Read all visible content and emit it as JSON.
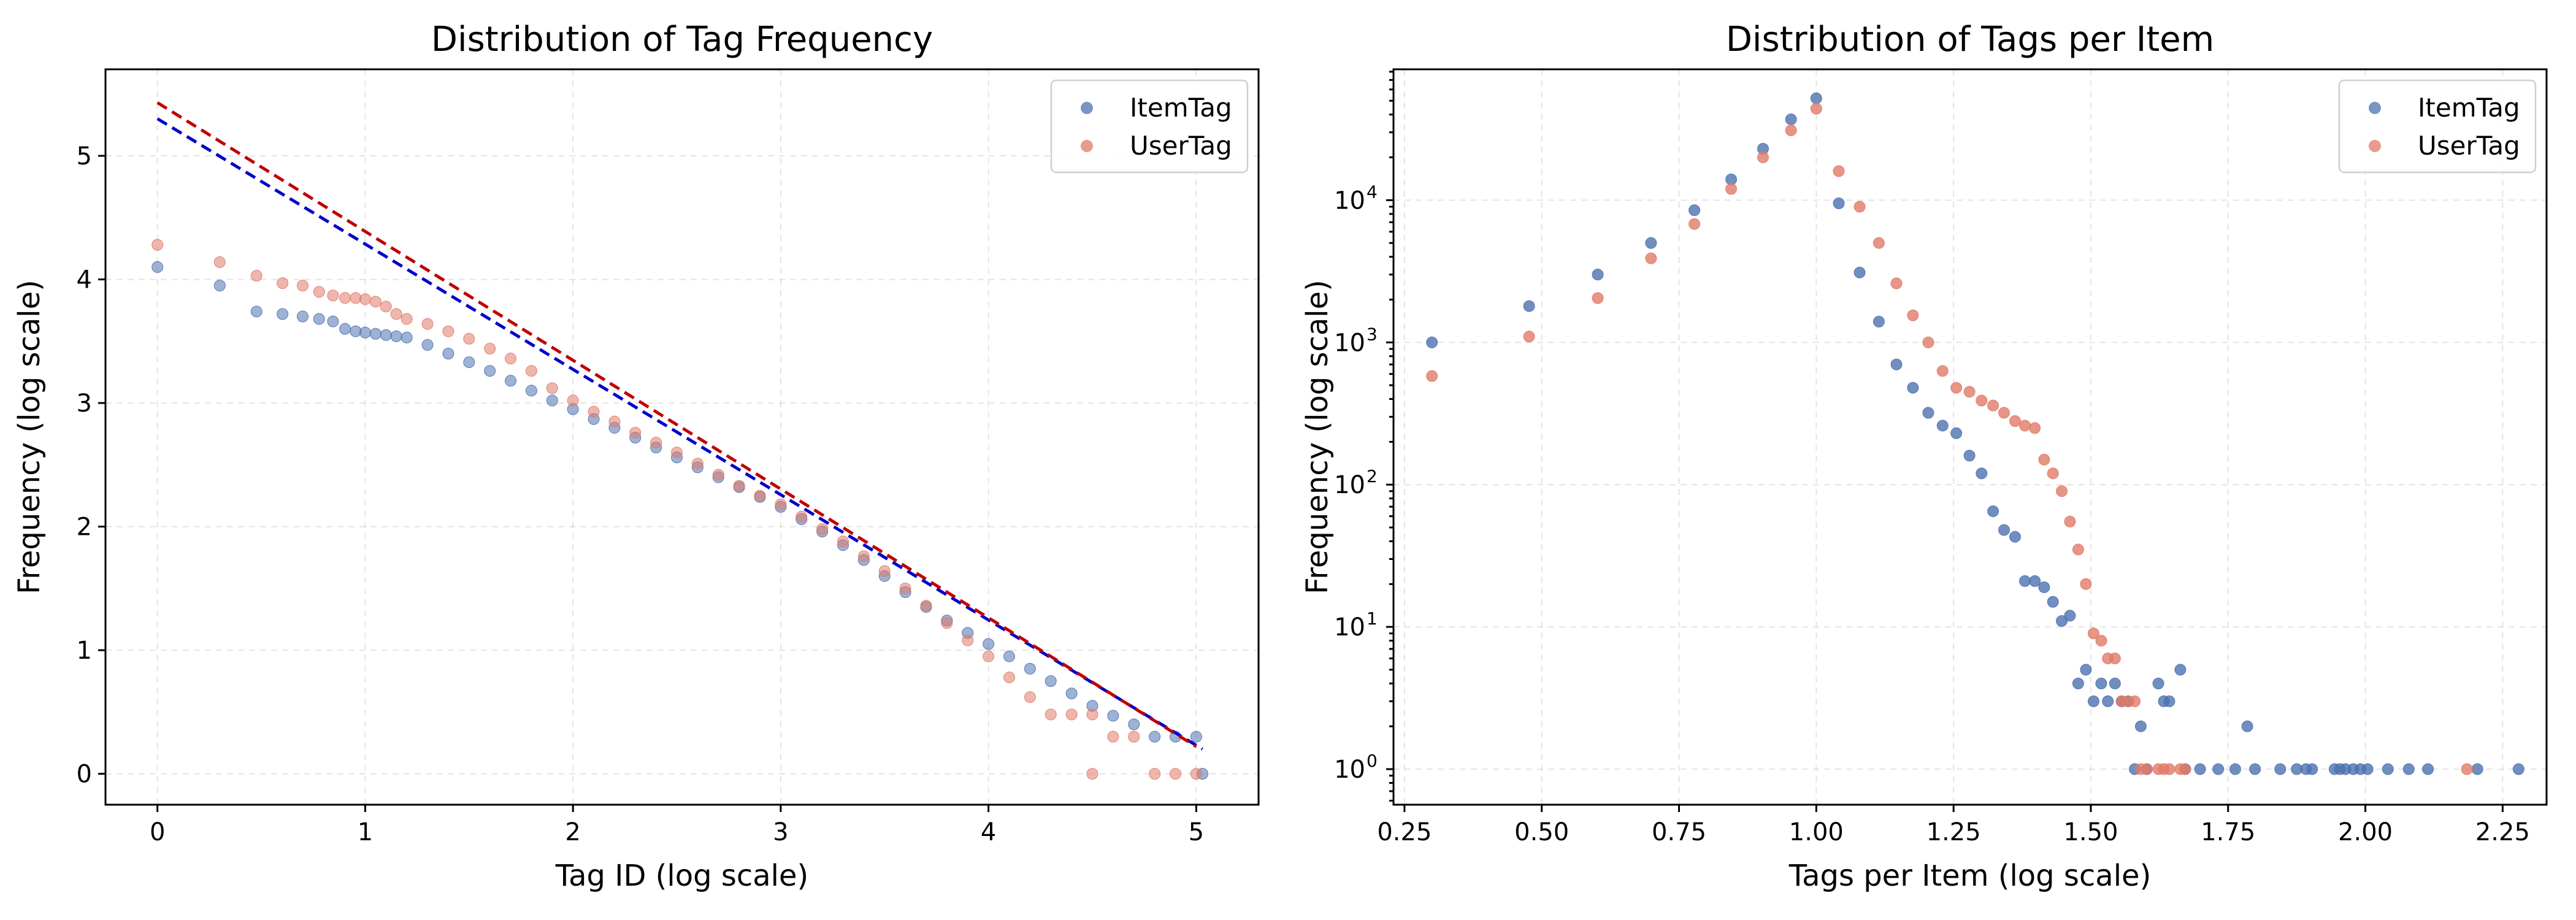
{
  "colors": {
    "itemtag": "#4C72B0",
    "usertag": "#DD8452",
    "usertag_marker": "#E07A68",
    "fit_blue": "#0000CC",
    "fit_red": "#C00000"
  },
  "chart_data": [
    {
      "type": "scatter",
      "title": "Distribution of Tag Frequency",
      "xlabel": "Tag ID  (log scale)",
      "ylabel": "Frequency (log scale)",
      "xlim": [
        -0.25,
        5.3
      ],
      "ylim": [
        -0.25,
        5.7
      ],
      "xticks": [
        0,
        1,
        2,
        3,
        4,
        5
      ],
      "xtick_labels": [
        "0",
        "1",
        "2",
        "3",
        "4",
        "5"
      ],
      "yticks": [
        0,
        1,
        2,
        3,
        4,
        5
      ],
      "ytick_labels": [
        "0",
        "1",
        "2",
        "3",
        "4",
        "5"
      ],
      "legend": [
        "ItemTag",
        "UserTag"
      ],
      "legend_position": "top-right",
      "series": [
        {
          "name": "ItemTag",
          "x": [
            0,
            0.3,
            0.477,
            0.602,
            0.699,
            0.778,
            0.845,
            0.903,
            0.954,
            1.0,
            1.05,
            1.1,
            1.15,
            1.2,
            1.3,
            1.4,
            1.5,
            1.6,
            1.7,
            1.8,
            1.9,
            2.0,
            2.1,
            2.2,
            2.3,
            2.4,
            2.5,
            2.6,
            2.7,
            2.8,
            2.9,
            3.0,
            3.1,
            3.2,
            3.3,
            3.4,
            3.5,
            3.6,
            3.7,
            3.8,
            3.9,
            4.0,
            4.1,
            4.2,
            4.3,
            4.4,
            4.5,
            4.6,
            4.7,
            4.8,
            4.9,
            5.0,
            5.03
          ],
          "values": [
            4.1,
            3.95,
            3.74,
            3.72,
            3.7,
            3.68,
            3.66,
            3.6,
            3.58,
            3.57,
            3.56,
            3.55,
            3.54,
            3.53,
            3.47,
            3.4,
            3.33,
            3.26,
            3.18,
            3.1,
            3.02,
            2.95,
            2.87,
            2.8,
            2.72,
            2.64,
            2.56,
            2.48,
            2.4,
            2.32,
            2.24,
            2.16,
            2.06,
            1.96,
            1.85,
            1.73,
            1.6,
            1.47,
            1.35,
            1.24,
            1.14,
            1.05,
            0.95,
            0.85,
            0.75,
            0.65,
            0.55,
            0.47,
            0.4,
            0.3,
            0.3,
            0.3,
            0.0
          ]
        },
        {
          "name": "UserTag",
          "x": [
            0,
            0.3,
            0.477,
            0.602,
            0.699,
            0.778,
            0.845,
            0.903,
            0.954,
            1.0,
            1.05,
            1.1,
            1.15,
            1.2,
            1.3,
            1.4,
            1.5,
            1.6,
            1.7,
            1.8,
            1.9,
            2.0,
            2.1,
            2.2,
            2.3,
            2.4,
            2.5,
            2.6,
            2.7,
            2.8,
            2.9,
            3.0,
            3.1,
            3.2,
            3.3,
            3.4,
            3.5,
            3.6,
            3.7,
            3.8,
            3.9,
            4.0,
            4.1,
            4.2,
            4.3,
            4.4,
            4.5,
            4.6,
            4.7,
            4.8,
            4.9,
            5.0,
            4.5
          ],
          "values": [
            4.28,
            4.14,
            4.03,
            3.97,
            3.95,
            3.9,
            3.87,
            3.85,
            3.85,
            3.84,
            3.82,
            3.78,
            3.72,
            3.68,
            3.64,
            3.58,
            3.52,
            3.44,
            3.36,
            3.26,
            3.12,
            3.02,
            2.93,
            2.85,
            2.76,
            2.68,
            2.6,
            2.51,
            2.42,
            2.33,
            2.25,
            2.18,
            2.08,
            1.98,
            1.88,
            1.76,
            1.64,
            1.5,
            1.36,
            1.22,
            1.08,
            0.95,
            0.78,
            0.62,
            0.48,
            0.48,
            0.48,
            0.3,
            0.3,
            0.0,
            0.0,
            0.0,
            0.0
          ]
        },
        {
          "name": "ItemTag fit",
          "style": "dashed-line",
          "x": [
            0,
            5.03
          ],
          "values": [
            5.3,
            0.2
          ]
        },
        {
          "name": "UserTag fit",
          "style": "dashed-line",
          "x": [
            0,
            5.0
          ],
          "values": [
            5.43,
            0.22
          ]
        }
      ]
    },
    {
      "type": "scatter",
      "title": "Distribution of Tags per Item",
      "xlabel": "Tags per Item (log scale)",
      "ylabel": "Frequency (log scale)",
      "y_scale": "log",
      "xlim": [
        0.23,
        2.33
      ],
      "ylim_log10": [
        -0.25,
        4.92
      ],
      "xticks": [
        0.25,
        0.5,
        0.75,
        1.0,
        1.25,
        1.5,
        1.75,
        2.0,
        2.25
      ],
      "xtick_labels": [
        "0.25",
        "0.50",
        "0.75",
        "1.00",
        "1.25",
        "1.50",
        "1.75",
        "2.00",
        "2.25"
      ],
      "yticks_log10": [
        0,
        1,
        2,
        3,
        4
      ],
      "ytick_labels": [
        "10",
        "10",
        "10",
        "10",
        "10"
      ],
      "ytick_exponents": [
        "0",
        "1",
        "2",
        "3",
        "4"
      ],
      "legend": [
        "ItemTag",
        "UserTag"
      ],
      "legend_position": "top-right",
      "series": [
        {
          "name": "ItemTag",
          "x": [
            0.3,
            0.477,
            0.602,
            0.699,
            0.778,
            0.845,
            0.903,
            0.954,
            1.0,
            1.041,
            1.079,
            1.114,
            1.146,
            1.176,
            1.204,
            1.23,
            1.255,
            1.279,
            1.301,
            1.322,
            1.342,
            1.362,
            1.38,
            1.398,
            1.415,
            1.431,
            1.447,
            1.462,
            1.477,
            1.491,
            1.505,
            1.519,
            1.531,
            1.544,
            1.556,
            1.568,
            1.58,
            1.591,
            1.602,
            1.623,
            1.633,
            1.643,
            1.663,
            1.672,
            1.699,
            1.732,
            1.763,
            1.785,
            1.799,
            1.845,
            1.875,
            1.892,
            1.903,
            1.944,
            1.954,
            1.964,
            1.978,
            1.991,
            2.004,
            2.041,
            2.079,
            2.114,
            2.204,
            2.279
          ],
          "values": [
            1000,
            1800,
            3000,
            5000,
            8500,
            14000,
            23000,
            37000,
            52000,
            9500,
            3100,
            1400,
            700,
            480,
            320,
            260,
            230,
            160,
            120,
            65,
            48,
            43,
            21,
            21,
            19,
            15,
            11,
            12,
            4,
            5,
            3,
            4,
            3,
            4,
            3,
            3,
            1,
            2,
            1,
            4,
            3,
            3,
            5,
            1,
            1,
            1,
            1,
            2,
            1,
            1,
            1,
            1,
            1,
            1,
            1,
            1,
            1,
            1,
            1,
            1,
            1,
            1,
            1,
            1
          ]
        },
        {
          "name": "UserTag",
          "x": [
            0.3,
            0.477,
            0.602,
            0.699,
            0.778,
            0.845,
            0.903,
            0.954,
            1.0,
            1.041,
            1.079,
            1.114,
            1.146,
            1.176,
            1.204,
            1.23,
            1.255,
            1.279,
            1.301,
            1.322,
            1.342,
            1.362,
            1.38,
            1.398,
            1.415,
            1.431,
            1.447,
            1.462,
            1.477,
            1.491,
            1.505,
            1.519,
            1.531,
            1.544,
            1.556,
            1.568,
            1.58,
            1.591,
            1.602,
            1.623,
            1.633,
            1.643,
            1.663,
            1.672,
            2.185
          ],
          "values": [
            580,
            1100,
            2050,
            3900,
            6800,
            12000,
            20000,
            31000,
            44000,
            16000,
            9000,
            5000,
            2600,
            1550,
            1000,
            630,
            480,
            450,
            390,
            360,
            320,
            280,
            260,
            250,
            150,
            120,
            90,
            55,
            35,
            20,
            9,
            8,
            6,
            6,
            3,
            3,
            3,
            1,
            1,
            1,
            1,
            1,
            1,
            1,
            1
          ]
        }
      ]
    }
  ]
}
